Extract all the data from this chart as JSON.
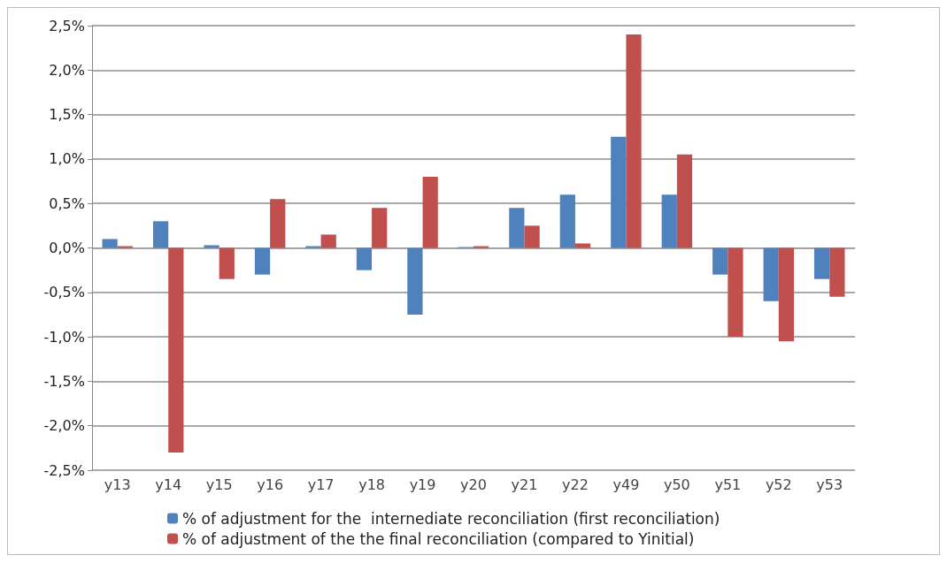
{
  "chart_data": {
    "type": "bar",
    "categories": [
      "y13",
      "y14",
      "y15",
      "y16",
      "y17",
      "y18",
      "y19",
      "y20",
      "y21",
      "y22",
      "y49",
      "y50",
      "y51",
      "y52",
      "y53"
    ],
    "series": [
      {
        "name": "% of adjustment for the  internediate reconciliation (first reconciliation)",
        "color": "#4f81bd",
        "values": [
          0.1,
          0.3,
          0.03,
          -0.3,
          0.02,
          -0.25,
          -0.75,
          0.01,
          0.45,
          0.6,
          1.25,
          0.6,
          -0.3,
          -0.6,
          -0.35
        ]
      },
      {
        "name": "% of adjustment of the the final reconciliation (compared to Yinitial)",
        "color": "#c0504d",
        "values": [
          0.02,
          -2.3,
          -0.35,
          0.55,
          0.15,
          0.45,
          0.8,
          0.02,
          0.25,
          0.05,
          2.4,
          1.05,
          -1.0,
          -1.05,
          -0.55
        ]
      }
    ],
    "ylim": [
      -2.5,
      2.5
    ],
    "yticks": [
      {
        "value": -2.5,
        "label": "-2,5%"
      },
      {
        "value": -2,
        "label": "-2,0%"
      },
      {
        "value": -1.5,
        "label": "-1,5%"
      },
      {
        "value": -1,
        "label": "-1,0%"
      },
      {
        "value": -0.5,
        "label": "-0,5%"
      },
      {
        "value": 0,
        "label": "0,0%"
      },
      {
        "value": 0.5,
        "label": "0,5%"
      },
      {
        "value": 1,
        "label": "1,0%"
      },
      {
        "value": 1.5,
        "label": "1,5%"
      },
      {
        "value": 2,
        "label": "2,0%"
      },
      {
        "value": 2.5,
        "label": "2,5%"
      }
    ],
    "grid": "y",
    "legend": "bottom left"
  }
}
